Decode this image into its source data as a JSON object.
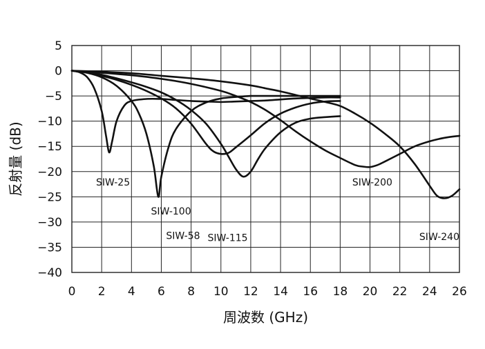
{
  "chart_data": {
    "type": "line",
    "xlabel": "周波数 (GHz)",
    "ylabel": "反射量 (dB)",
    "xlim": [
      0,
      26
    ],
    "ylim": [
      -40,
      5
    ],
    "x_ticks": [
      0,
      2,
      4,
      6,
      8,
      10,
      12,
      14,
      16,
      18,
      20,
      22,
      24,
      26
    ],
    "y_ticks": [
      5,
      0,
      -5,
      -10,
      -15,
      -20,
      -25,
      -30,
      -35,
      -40
    ],
    "grid": true,
    "series": [
      {
        "name": "SIW-25",
        "x": [
          0,
          0.5,
          1,
          1.5,
          2,
          2.3,
          2.5,
          2.7,
          3,
          3.5,
          4,
          5,
          6,
          7,
          8,
          9,
          10,
          11,
          12,
          13,
          14,
          15,
          16,
          17,
          18
        ],
        "y": [
          0,
          -0.3,
          -1.2,
          -3.5,
          -8,
          -13,
          -16.2,
          -14,
          -10,
          -7,
          -6,
          -5.6,
          -5.6,
          -5.8,
          -6,
          -6.1,
          -6.2,
          -6.1,
          -6,
          -5.9,
          -5.7,
          -5.5,
          -5.4,
          -5.3,
          -5.3
        ]
      },
      {
        "name": "SIW-58",
        "x": [
          0,
          1,
          2,
          3,
          4,
          4.5,
          5,
          5.5,
          5.8,
          6,
          6.5,
          7,
          8,
          9,
          10,
          11,
          12,
          13,
          14,
          15,
          16,
          17,
          18
        ],
        "y": [
          0,
          -0.4,
          -1.3,
          -3,
          -6,
          -8.5,
          -12.5,
          -19,
          -25,
          -21,
          -15,
          -11.5,
          -8,
          -6.3,
          -5.5,
          -5.2,
          -5,
          -5,
          -5,
          -5,
          -5,
          -5,
          -5
        ]
      },
      {
        "name": "SIW-100",
        "x": [
          0,
          1,
          2,
          3,
          4,
          5,
          6,
          7,
          8,
          9,
          9.5,
          10,
          10.5,
          11,
          12,
          13,
          14,
          15,
          16,
          17,
          18
        ],
        "y": [
          0,
          -0.3,
          -1,
          -1.8,
          -2.8,
          -4,
          -5.5,
          -7.5,
          -10.5,
          -14.5,
          -16,
          -16.5,
          -16.3,
          -15.2,
          -12.8,
          -10.3,
          -8.5,
          -7.3,
          -6.5,
          -6.1,
          -6
        ]
      },
      {
        "name": "SIW-115",
        "x": [
          0,
          1,
          2,
          3,
          4,
          5,
          6,
          7,
          8,
          9,
          10,
          10.5,
          11,
          11.5,
          12,
          12.5,
          13,
          14,
          15,
          16,
          17,
          18
        ],
        "y": [
          0,
          -0.3,
          -0.8,
          -1.5,
          -2.3,
          -3.2,
          -4.3,
          -5.8,
          -7.8,
          -10.5,
          -14.5,
          -17,
          -19.5,
          -21,
          -20,
          -17.5,
          -15.3,
          -12.2,
          -10.3,
          -9.5,
          -9.2,
          -9
        ]
      },
      {
        "name": "SIW-200",
        "x": [
          0,
          2,
          4,
          6,
          8,
          10,
          11,
          12,
          13,
          14,
          15,
          16,
          17,
          18,
          19,
          19.5,
          20,
          20.5,
          21,
          22,
          23,
          24,
          25,
          26
        ],
        "y": [
          0,
          -0.4,
          -0.9,
          -1.6,
          -2.6,
          -4,
          -5,
          -6.2,
          -7.8,
          -9.8,
          -12,
          -14,
          -15.8,
          -17.3,
          -18.7,
          -19,
          -19.1,
          -18.7,
          -18,
          -16.5,
          -15,
          -14,
          -13.3,
          -12.9
        ]
      },
      {
        "name": "SIW-240",
        "x": [
          0,
          2,
          4,
          6,
          8,
          10,
          12,
          13,
          14,
          15,
          16,
          17,
          18,
          19,
          20,
          21,
          22,
          23,
          24,
          24.5,
          25,
          25.5,
          26
        ],
        "y": [
          0,
          -0.2,
          -0.5,
          -1,
          -1.5,
          -2.1,
          -2.9,
          -3.5,
          -4.1,
          -4.8,
          -5.5,
          -6.2,
          -7,
          -8.5,
          -10.3,
          -12.5,
          -15,
          -18.5,
          -22.8,
          -24.8,
          -25.3,
          -24.8,
          -23.5
        ]
      }
    ],
    "annotations": [
      {
        "text": "SIW-25",
        "x": 3.9,
        "y": -22.8
      },
      {
        "text": "SIW-58",
        "x": 8.6,
        "y": -33.4
      },
      {
        "text": "SIW-100",
        "x": 8.0,
        "y": -28.5
      },
      {
        "text": "SIW-115",
        "x": 11.8,
        "y": -33.8
      },
      {
        "text": "SIW-200",
        "x": 21.5,
        "y": -22.8
      },
      {
        "text": "SIW-240",
        "x": 26.0,
        "y": -33.6
      }
    ]
  }
}
